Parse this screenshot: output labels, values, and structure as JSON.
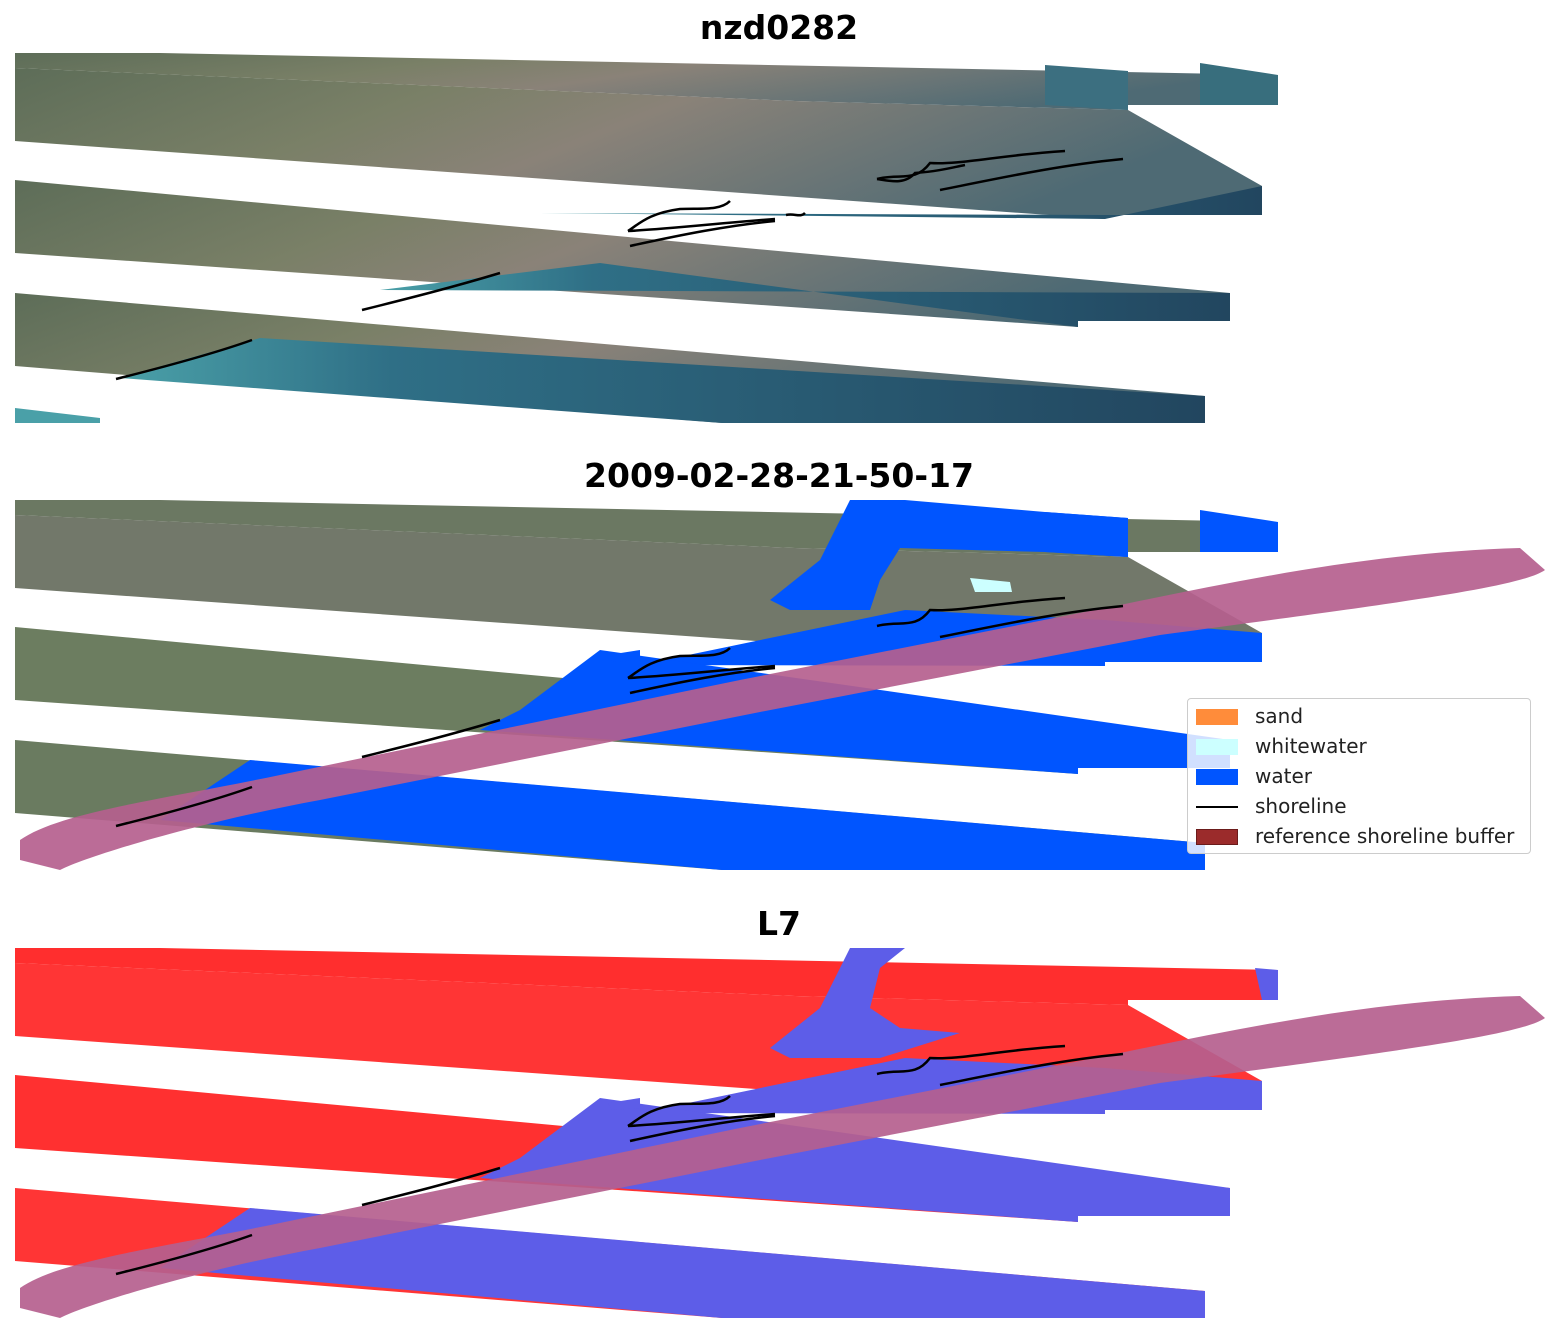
{
  "panels": [
    {
      "title": "nzd0282",
      "kind": "rgb",
      "classified": false
    },
    {
      "title": "2009-02-28-21-50-17",
      "kind": "classified",
      "classified": true
    },
    {
      "title": "L7",
      "kind": "index",
      "classified": true
    }
  ],
  "legend": {
    "items": [
      {
        "label": "sand",
        "type": "patch",
        "color": "#ff8c3a"
      },
      {
        "label": "whitewater",
        "type": "patch",
        "color": "#ccffff"
      },
      {
        "label": "water",
        "type": "patch",
        "color": "#0055ff"
      },
      {
        "label": "shoreline",
        "type": "line",
        "color": "#000000"
      },
      {
        "label": "reference shoreline buffer",
        "type": "patch",
        "color": "#9b2b2b"
      }
    ]
  },
  "colors": {
    "land": "#6e7f63",
    "water_rgb": "#2b5e78",
    "water_class": "#0055ff",
    "buffer": "#b5608e",
    "index_land": "#ff2b2b",
    "index_water": "#5a5ae6",
    "shoreline": "#000000"
  }
}
